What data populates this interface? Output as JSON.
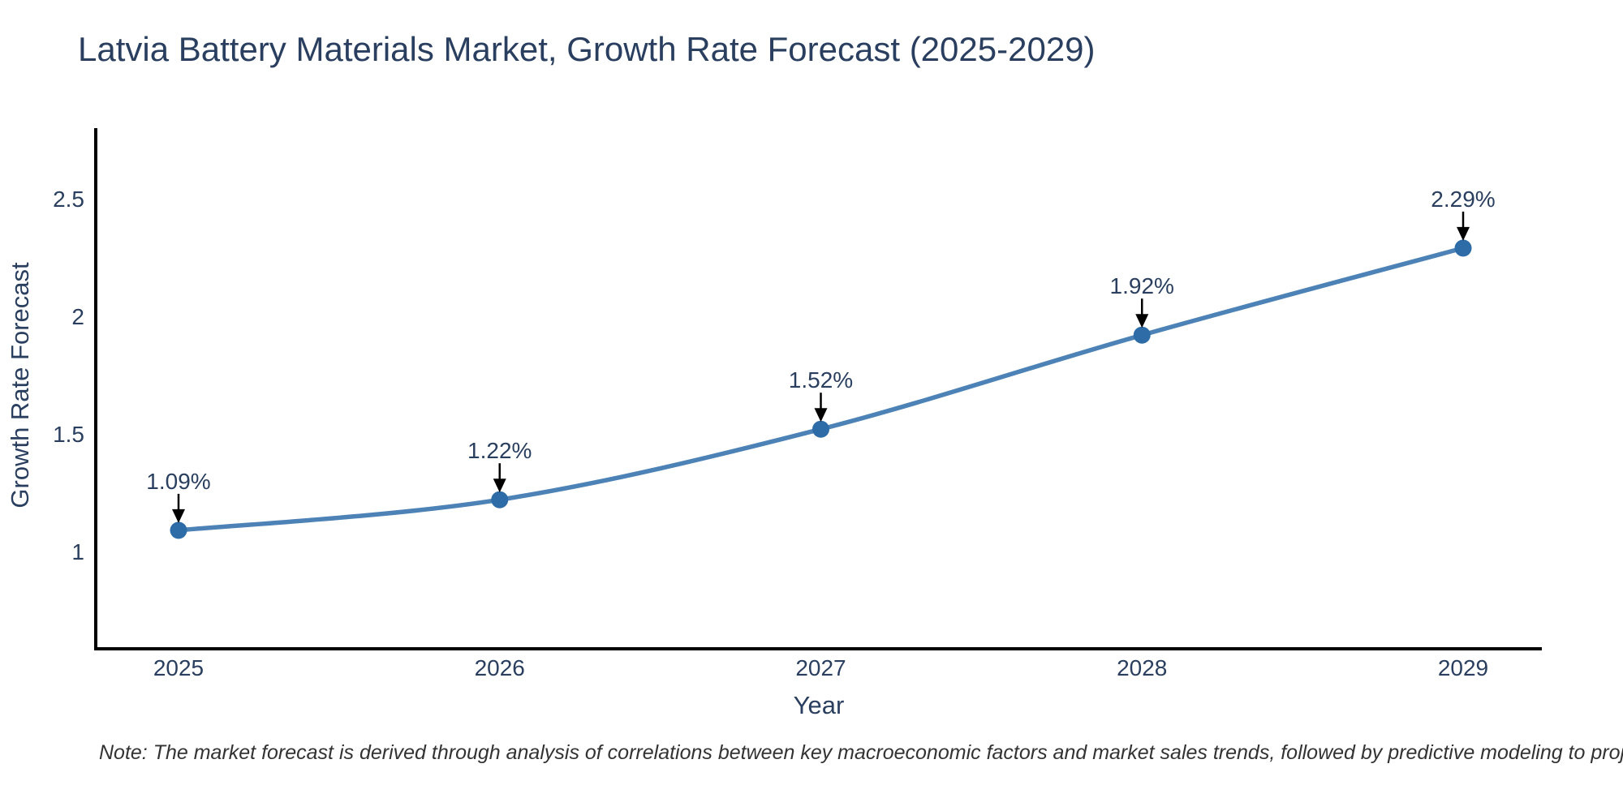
{
  "chart_data": {
    "type": "line",
    "title": "Latvia Battery Materials Market, Growth Rate Forecast (2025-2029)",
    "xlabel": "Year",
    "ylabel": "Growth Rate Forecast",
    "categories": [
      "2025",
      "2026",
      "2027",
      "2028",
      "2029"
    ],
    "series": [
      {
        "name": "Growth Rate Forecast",
        "values": [
          1.09,
          1.22,
          1.52,
          1.92,
          2.29
        ],
        "point_labels": [
          "1.09%",
          "1.22%",
          "1.52%",
          "1.92%",
          "2.29%"
        ]
      }
    ],
    "yticks": [
      {
        "value": 1,
        "label": "1"
      },
      {
        "value": 1.5,
        "label": "1.5"
      },
      {
        "value": 2,
        "label": "2"
      },
      {
        "value": 2.5,
        "label": "2.5"
      }
    ],
    "ylim": [
      0.58,
      2.93
    ],
    "grid": false,
    "legend_position": "none",
    "line_shape": "spline",
    "annotations_have_arrows": true
  },
  "note": "Note: The market forecast is derived through analysis of correlations between key macroeconomic factors and market sales trends, followed by predictive modeling to project future sales",
  "colors": {
    "line": "#4c82b6",
    "marker": "#2e6ca8",
    "text": "#2a3f5f",
    "axis_line": "#000000",
    "annotation_arrow": "#000000",
    "note_text": "#333333",
    "background": "#ffffff"
  }
}
